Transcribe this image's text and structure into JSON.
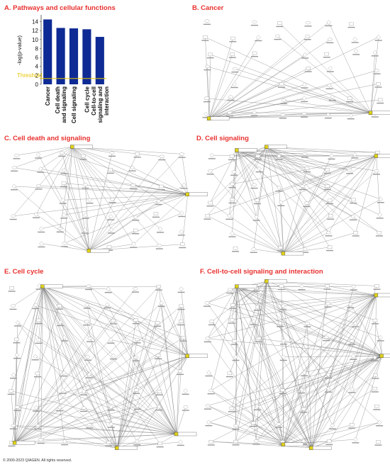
{
  "panels": {
    "a": {
      "title": "A. Pathways and cellular functions"
    },
    "b": {
      "title": "B. Cancer"
    },
    "c": {
      "title": "C. Cell death and signaling"
    },
    "d": {
      "title": "D. Cell signaling"
    },
    "e": {
      "title": "E. Cell cycle"
    },
    "f": {
      "title": "F. Cell-to-cell signaling and interaction"
    }
  },
  "chart_data": {
    "type": "bar",
    "categories": [
      "Cancer",
      "Cell death and signaling",
      "Cell signaling",
      "Cell cycle",
      "Cell-to-cell signaling and interaction"
    ],
    "category_lines": [
      [
        "Cancer"
      ],
      [
        "Cell death",
        "and signaling"
      ],
      [
        "Cell signaling"
      ],
      [
        "Cell cycle"
      ],
      [
        "Cell-to-cell",
        "signaling and",
        "interaction"
      ]
    ],
    "values": [
      14.5,
      12.6,
      12.5,
      12.3,
      10.6
    ],
    "ylabel": "-log(p-value)",
    "yticks": [
      0,
      2,
      4,
      6,
      8,
      10,
      12,
      14
    ],
    "ylim": [
      0,
      15.2
    ],
    "threshold": {
      "value": 1.3,
      "label": "Threshold"
    },
    "colors": {
      "bar": "#0e2a94",
      "threshold": "#e8c400"
    }
  },
  "footer": "© 2000-2023 QIAGEN. All rights reserved."
}
